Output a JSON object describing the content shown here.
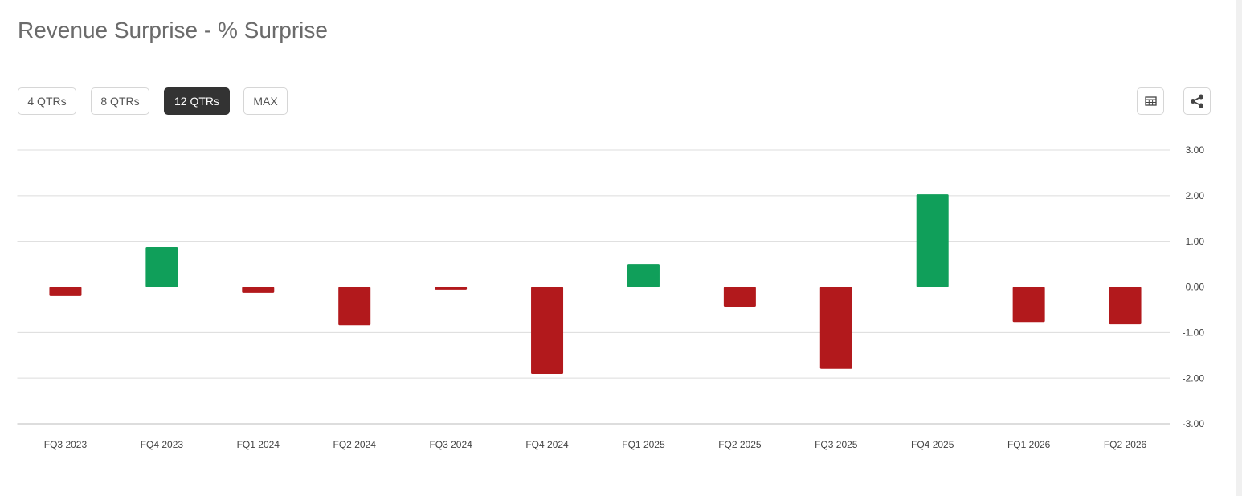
{
  "title": "Revenue Surprise - % Surprise",
  "buttons": [
    "4 QTRs",
    "8 QTRs",
    "12 QTRs",
    "MAX"
  ],
  "active_button": 2,
  "chart_data": {
    "type": "bar",
    "categories": [
      "FQ3 2023",
      "FQ4 2023",
      "FQ1 2024",
      "FQ2 2024",
      "FQ3 2024",
      "FQ4 2024",
      "FQ1 2025",
      "FQ2 2025",
      "FQ3 2025",
      "FQ4 2025",
      "FQ1 2026",
      "FQ2 2026"
    ],
    "values": [
      -0.2,
      0.87,
      -0.13,
      -0.84,
      -0.06,
      -1.91,
      0.5,
      -0.43,
      -1.8,
      2.03,
      -0.77,
      -0.82
    ],
    "positive_color": "#109f5a",
    "negative_color": "#b2191c",
    "ylim": [
      -3,
      3
    ],
    "yticks": [
      {
        "value": 3,
        "label": "3.00"
      },
      {
        "value": 2,
        "label": "2.00"
      },
      {
        "value": 1,
        "label": "1.00"
      },
      {
        "value": 0,
        "label": "0.00"
      },
      {
        "value": -1,
        "label": "-1.00"
      },
      {
        "value": -2,
        "label": "-2.00"
      },
      {
        "value": -3,
        "label": "-3.00"
      }
    ],
    "grid": true
  }
}
